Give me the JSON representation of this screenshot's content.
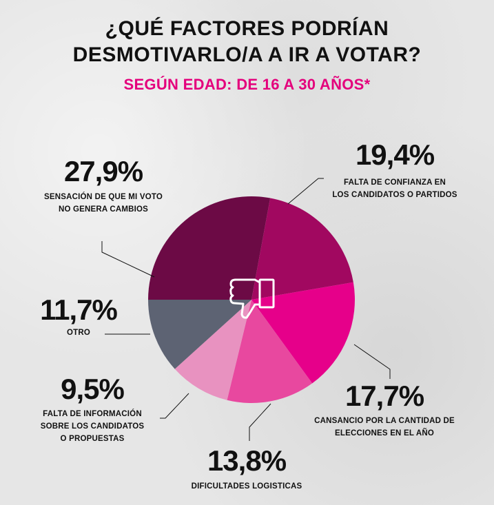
{
  "chart_data": {
    "type": "pie",
    "title": "¿QUÉ FACTORES PODRÍAN DESMOTIVARLO/A A IR A VOTAR?",
    "subtitle": "SEGÚN EDAD: DE 16 A 30 AÑOS*",
    "slices": [
      {
        "value": 27.9,
        "display": "27,9%",
        "label": "SENSACIÓN DE QUE MI VOTO NO GENERA CAMBIOS",
        "label_lines": [
          "SENSACIÓN DE QUE MI VOTO",
          "NO GENERA CAMBIOS"
        ],
        "color": "#6c0a45"
      },
      {
        "value": 19.4,
        "display": "19,4%",
        "label": "FALTA DE CONFIANZA EN LOS CANDIDATOS O PARTIDOS",
        "label_lines": [
          "FALTA DE CONFIANZA EN",
          "LOS CANDIDATOS O PARTIDOS"
        ],
        "color": "#a10860"
      },
      {
        "value": 17.7,
        "display": "17,7%",
        "label": "CANSANCIO POR LA CANTIDAD DE ELECCIONES EN EL AÑO",
        "label_lines": [
          "CANSANCIO POR LA CANTIDAD DE",
          "ELECCIONES EN EL AÑO"
        ],
        "color": "#e6008a"
      },
      {
        "value": 13.8,
        "display": "13,8%",
        "label": "DIFICULTADES LOGISTICAS",
        "label_lines": [
          "DIFICULTADES LOGISTICAS"
        ],
        "color": "#e8489f"
      },
      {
        "value": 9.5,
        "display": "9,5%",
        "label": "FALTA DE INFORMACIÓN SOBRE LOS CANDIDATOS O PROPUESTAS",
        "label_lines": [
          "FALTA DE INFORMACIÓN",
          "SOBRE LOS CANDIDATOS",
          "O PROPUESTAS"
        ],
        "color": "#e892c0"
      },
      {
        "value": 11.7,
        "display": "11,7%",
        "label": "OTRO",
        "label_lines": [
          "OTRO"
        ],
        "color": "#5d6373"
      }
    ],
    "start_angle": "9 o'clock, clockwise",
    "center_icon": "thumbs-down-icon",
    "legend": "none"
  },
  "title_lines": [
    "¿QUÉ FACTORES PODRÍAN",
    "DESMOTIVARLO/A A IR A VOTAR?"
  ],
  "colors": {
    "accent": "#e4007c",
    "background": "#e6e6e6"
  }
}
